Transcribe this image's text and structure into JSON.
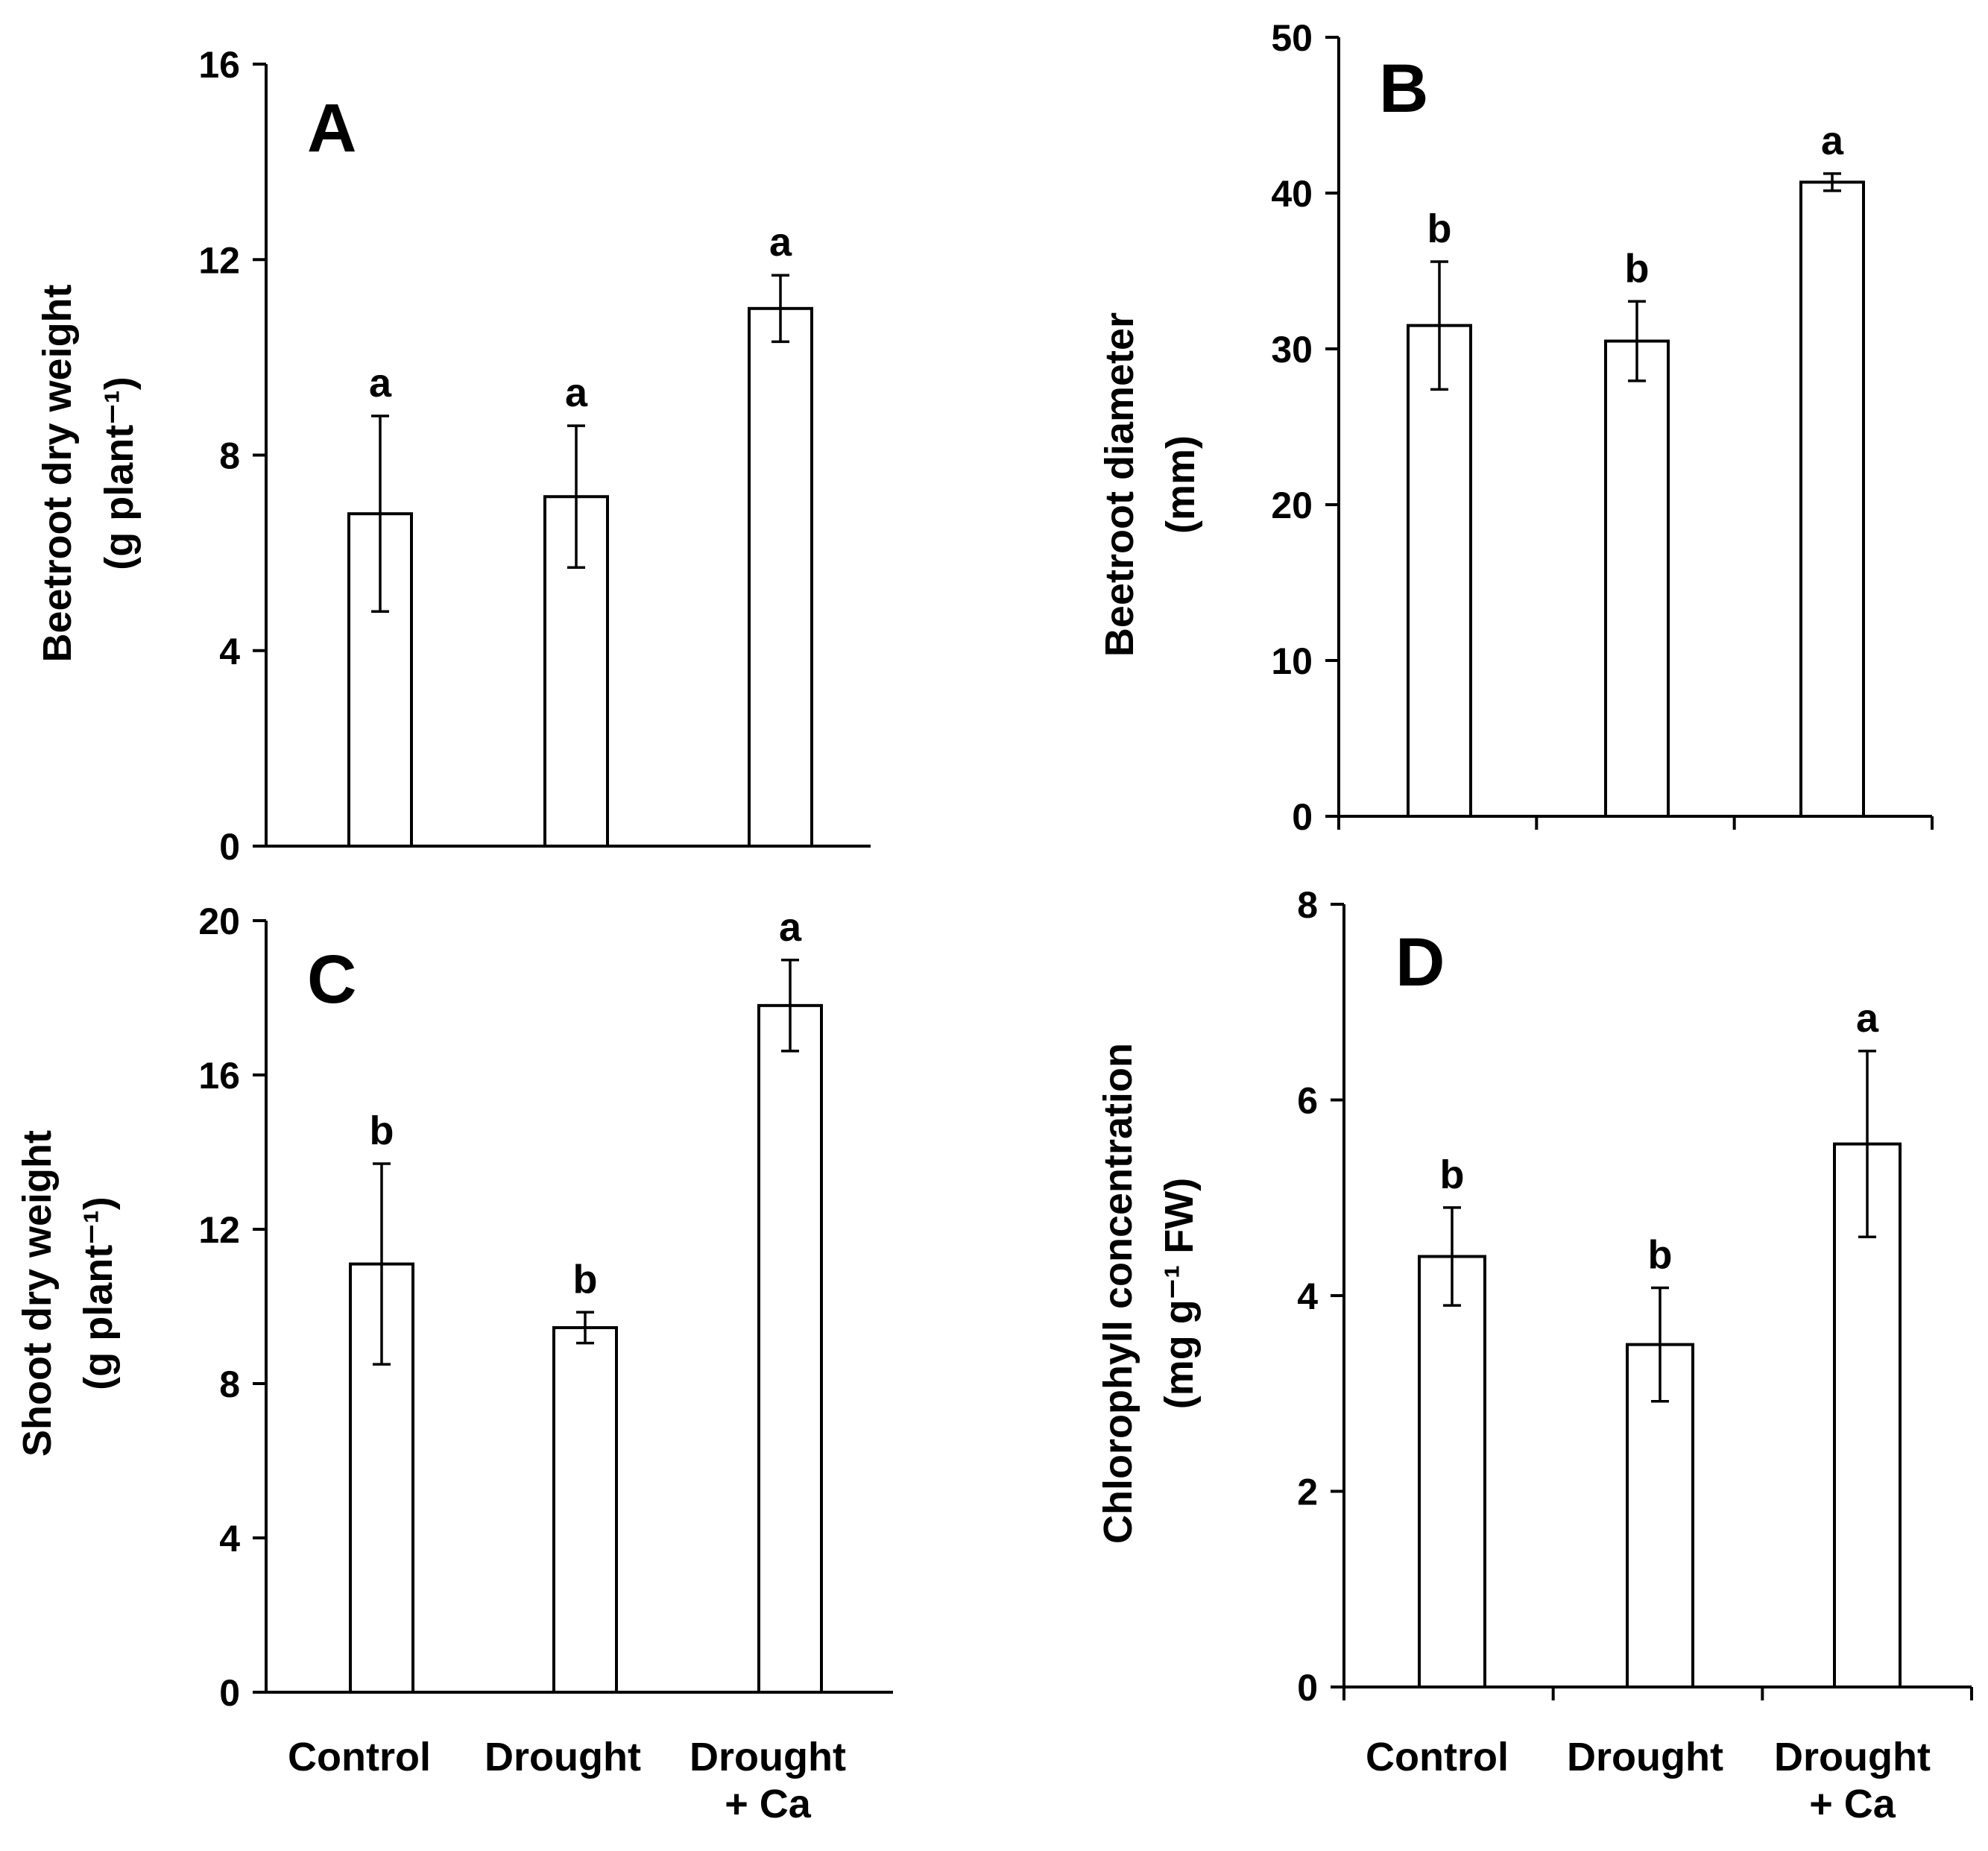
{
  "chart_data": [
    {
      "type": "bar",
      "panel": "A",
      "categories": [
        "Control",
        "Drought",
        "Drought + Ca"
      ],
      "values": [
        6.8,
        7.15,
        11.0
      ],
      "errors": [
        2.0,
        1.45,
        0.68
      ],
      "significance": [
        "a",
        "a",
        "a"
      ],
      "ylabel": [
        "Beetroot dry weight",
        "(g plant⁻¹)"
      ],
      "ylim": [
        0,
        16
      ],
      "yticks": [
        0,
        4,
        8,
        12,
        16
      ],
      "xlabel": "",
      "show_category_labels": false,
      "grid": false
    },
    {
      "type": "bar",
      "panel": "B",
      "categories": [
        "Control",
        "Drought",
        "Drought + Ca"
      ],
      "values": [
        31.5,
        30.5,
        40.7
      ],
      "errors": [
        4.1,
        2.55,
        0.55
      ],
      "significance": [
        "b",
        "b",
        "a"
      ],
      "ylabel": [
        "Beetroot diameter",
        "(mm)"
      ],
      "ylim": [
        0,
        50
      ],
      "yticks": [
        0,
        10,
        20,
        30,
        40,
        50
      ],
      "xlabel": "",
      "show_category_labels": false,
      "grid": false
    },
    {
      "type": "bar",
      "panel": "C",
      "categories": [
        "Control",
        "Drought",
        "Drought + Ca"
      ],
      "values": [
        11.1,
        9.45,
        17.8
      ],
      "errors": [
        2.6,
        0.4,
        1.18
      ],
      "significance": [
        "b",
        "b",
        "a"
      ],
      "ylabel": [
        "Shoot dry weight",
        "(g plant⁻¹)"
      ],
      "ylim": [
        0,
        20
      ],
      "yticks": [
        0,
        4,
        8,
        12,
        16,
        20
      ],
      "xlabel": "",
      "show_category_labels": true,
      "grid": false
    },
    {
      "type": "bar",
      "panel": "D",
      "categories": [
        "Control",
        "Drought",
        "Drought + Ca"
      ],
      "values": [
        4.4,
        3.5,
        5.55
      ],
      "errors": [
        0.5,
        0.58,
        0.95
      ],
      "significance": [
        "b",
        "b",
        "a"
      ],
      "ylabel": [
        "Chlorophyll concentration",
        "(mg g⁻¹ FW)"
      ],
      "ylim": [
        0,
        8
      ],
      "yticks": [
        0,
        2,
        4,
        6,
        8
      ],
      "xlabel": "",
      "show_category_labels": true,
      "grid": false
    }
  ]
}
